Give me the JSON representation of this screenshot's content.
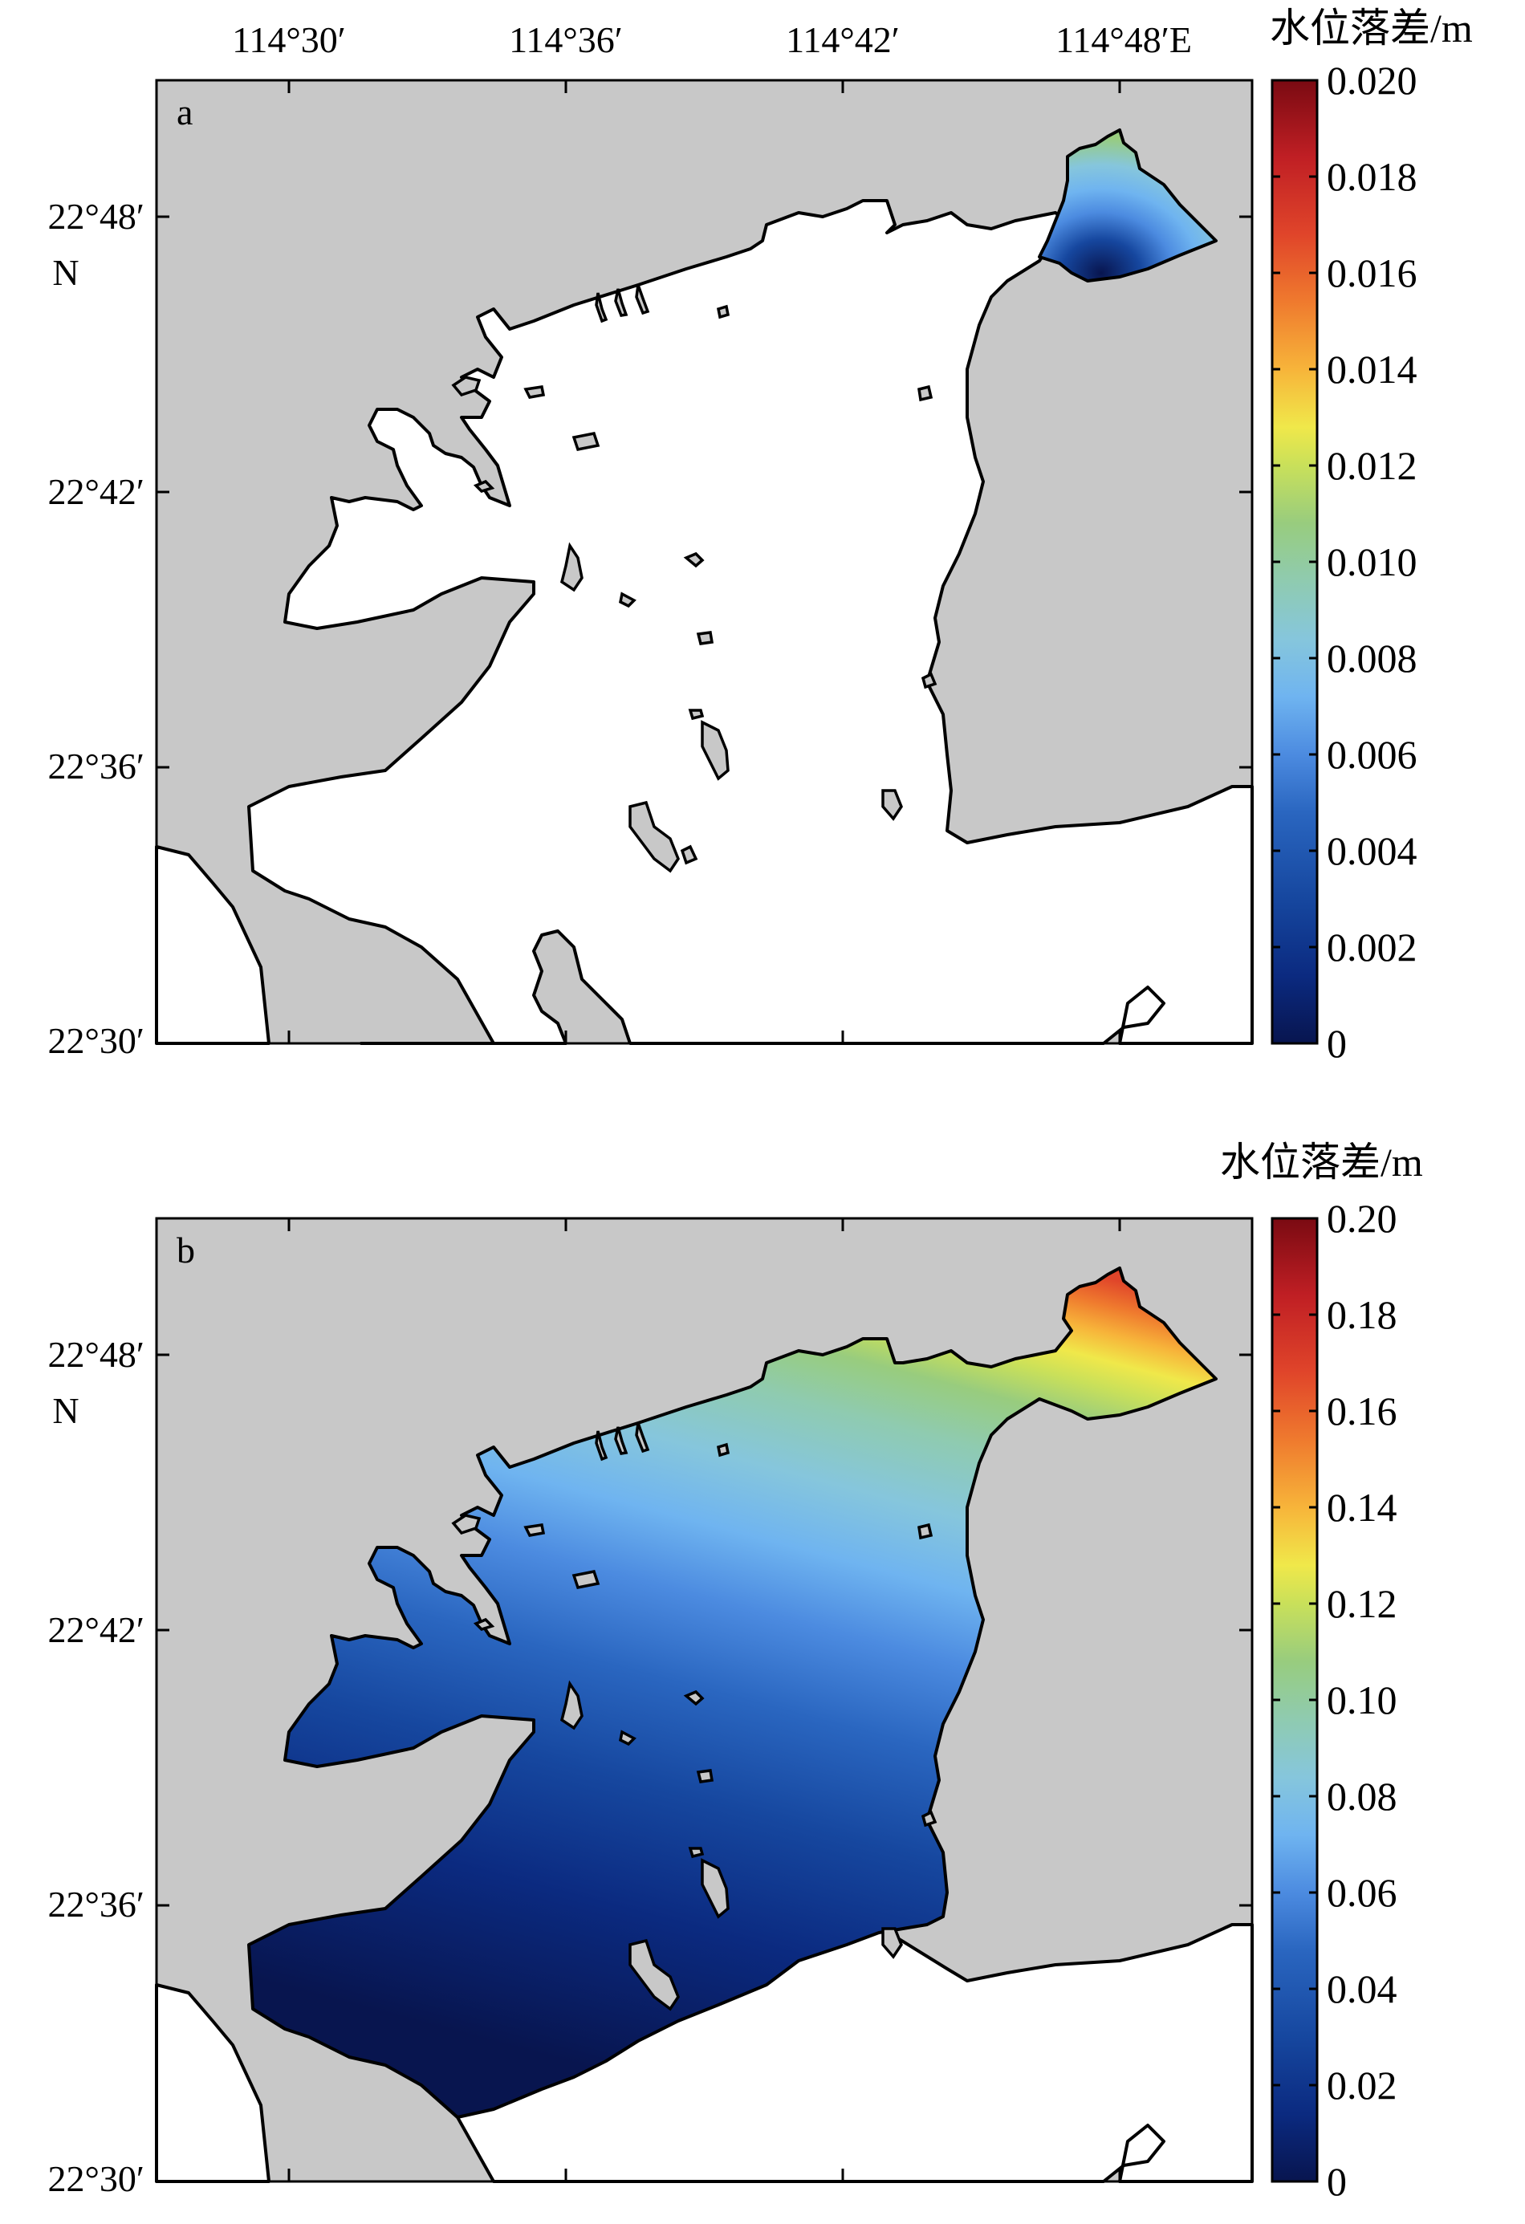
{
  "figure": {
    "lon_labels": [
      "114°30′",
      "114°36′",
      "114°42′",
      "114°48′E"
    ],
    "lat_labels": [
      "22°48′",
      "N",
      "22°42′",
      "22°36′",
      "22°30′"
    ]
  },
  "panels": [
    {
      "id": "a",
      "letter": "a",
      "colorbar": {
        "title": "水位落差/m",
        "min": 0,
        "max": 0.02,
        "tick_labels": [
          "0.020",
          "0.018",
          "0.016",
          "0.014",
          "0.012",
          "0.010",
          "0.008",
          "0.006",
          "0.004",
          "0.002",
          "0"
        ]
      }
    },
    {
      "id": "b",
      "letter": "b",
      "colorbar": {
        "title": "水位落差/m",
        "min": 0,
        "max": 0.2,
        "tick_labels": [
          "0.20",
          "0.18",
          "0.16",
          "0.14",
          "0.12",
          "0.10",
          "0.08",
          "0.06",
          "0.04",
          "0.02",
          "0"
        ]
      }
    }
  ],
  "colors": {
    "land": "#c8c8c8",
    "water": "#ffffff",
    "colormap": [
      "#08154f",
      "#0b2a80",
      "#16479f",
      "#2a66c0",
      "#4c8be0",
      "#6fb4f0",
      "#86c6dc",
      "#8fcbb0",
      "#98cc7e",
      "#c9e05a",
      "#f0e84a",
      "#f7b43a",
      "#ef7a2e",
      "#e0452a",
      "#c01f24",
      "#7a0a12"
    ]
  }
}
